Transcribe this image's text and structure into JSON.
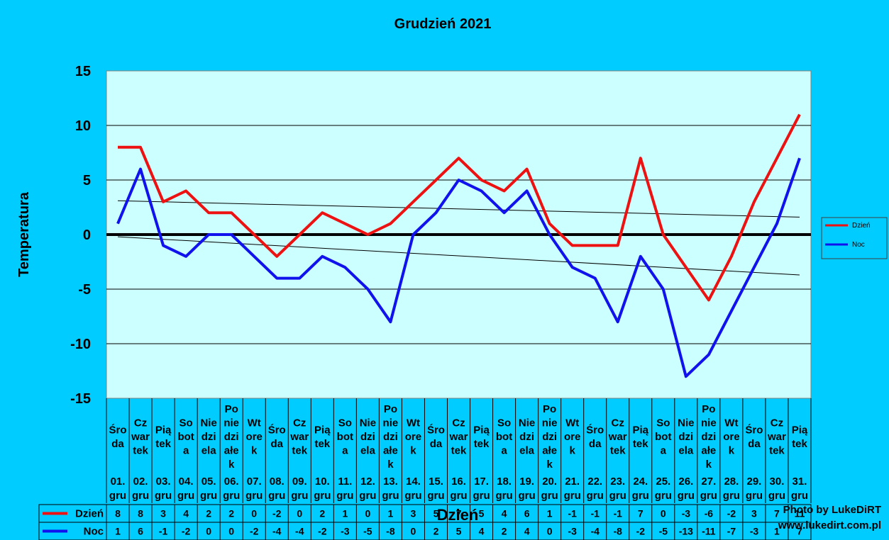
{
  "chart_data": {
    "type": "line",
    "title": "Grudzień 2021",
    "ylabel": "Temperatura",
    "xlabel": "Dzień",
    "ylim": [
      -15,
      15
    ],
    "yticks": [
      15,
      10,
      5,
      0,
      -5,
      -10,
      -15
    ],
    "grid": true,
    "legend_position": "right",
    "weekday_labels": [
      "Śro da",
      "Cz war tek",
      "Pią tek",
      "So bot a",
      "Nie dzi ela",
      "Po nie dzi ałe k",
      "Wt ore k",
      "Śro da",
      "Cz war tek",
      "Pią tek",
      "So bot a",
      "Nie dzi ela",
      "Po nie dzi ałe k",
      "Wt ore k",
      "Śro da",
      "Cz war tek",
      "Pią tek",
      "So bot a",
      "Nie dzi ela",
      "Po nie dzi ałe k",
      "Wt ore k",
      "Śro da",
      "Cz war tek",
      "Pią tek",
      "So bot a",
      "Nie dzi ela",
      "Po nie dzi ałe k",
      "Wt ore k",
      "Śro da",
      "Cz war tek",
      "Pią tek"
    ],
    "date_labels": [
      "01. gru",
      "02. gru",
      "03. gru",
      "04. gru",
      "05. gru",
      "06. gru",
      "07. gru",
      "08. gru",
      "09. gru",
      "10. gru",
      "11. gru",
      "12. gru",
      "13. gru",
      "14. gru",
      "15. gru",
      "16. gru",
      "17. gru",
      "18. gru",
      "19. gru",
      "20. gru",
      "21. gru",
      "22. gru",
      "23. gru",
      "24. gru",
      "25. gru",
      "26. gru",
      "27. gru",
      "28. gru",
      "29. gru",
      "30. gru",
      "31. gru"
    ],
    "series": [
      {
        "name": "Dzień",
        "color": "#EE1111",
        "values": [
          8,
          8,
          3,
          4,
          2,
          2,
          0,
          -2,
          0,
          2,
          1,
          0,
          1,
          3,
          5,
          7,
          5,
          4,
          6,
          1,
          -1,
          -1,
          -1,
          7,
          0,
          -3,
          -6,
          -2,
          3,
          7,
          11
        ]
      },
      {
        "name": "Noc",
        "color": "#1111EE",
        "values": [
          1,
          6,
          -1,
          -2,
          0,
          0,
          -2,
          -4,
          -4,
          -2,
          -3,
          -5,
          -8,
          0,
          2,
          5,
          4,
          2,
          4,
          0,
          -3,
          -4,
          -8,
          -2,
          -5,
          -13,
          -11,
          -7,
          -3,
          1,
          7
        ]
      }
    ],
    "trendlines": [
      {
        "series": "Dzień",
        "start": 3.1,
        "end": 1.6
      },
      {
        "series": "Noc",
        "start": -0.2,
        "end": -3.7
      }
    ]
  },
  "watermark": {
    "line1": "Photo by LukeDiRT",
    "line2": "www.lukedirt.com.pl"
  }
}
